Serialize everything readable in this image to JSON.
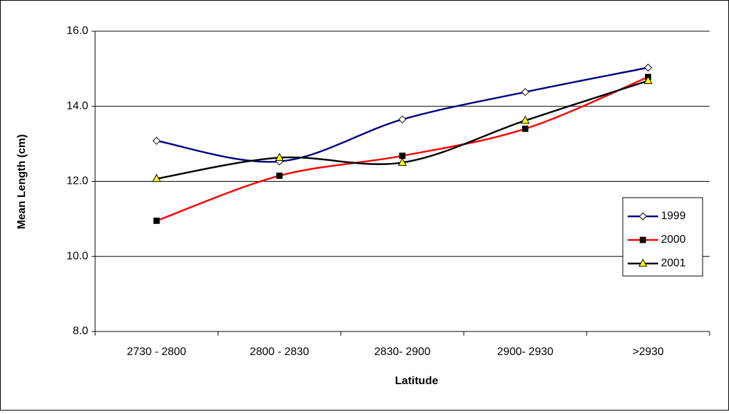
{
  "chart_data": {
    "type": "line",
    "x_label": "Latitude",
    "y_label": "Mean Length (cm)",
    "categories": [
      "2730 - 2800",
      "2800 - 2830",
      "2830- 2900",
      "2900- 2930",
      ">2930"
    ],
    "series": [
      {
        "name": "1999",
        "color": "#000080",
        "marker": "diamond",
        "marker_fill": "#ffffff",
        "values": [
          13.08,
          12.53,
          13.65,
          14.38,
          15.03
        ]
      },
      {
        "name": "2000",
        "color": "#ff0000",
        "marker": "square",
        "marker_fill": "#000000",
        "values": [
          10.95,
          12.15,
          12.68,
          13.4,
          14.78
        ]
      },
      {
        "name": "2001",
        "color": "#000000",
        "marker": "triangle",
        "marker_fill": "#ffff00",
        "values": [
          12.07,
          12.63,
          12.5,
          13.62,
          14.68
        ]
      }
    ],
    "ylim": [
      8,
      16
    ],
    "yticks": [
      {
        "value": 8,
        "label": "8.0"
      },
      {
        "value": 10,
        "label": "10.0"
      },
      {
        "value": 12,
        "label": "12.0"
      },
      {
        "value": 14,
        "label": "14.0"
      },
      {
        "value": 16,
        "label": "16.0"
      }
    ],
    "grid": true,
    "legend": "right",
    "smooth": true
  }
}
